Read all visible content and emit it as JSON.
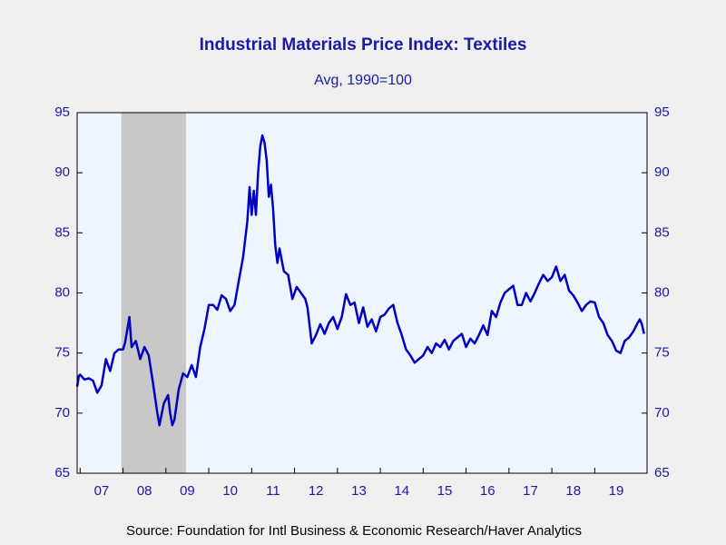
{
  "chart_data": {
    "type": "line",
    "title": "Industrial Materials Price Index: Textiles",
    "subtitle": "Avg, 1990=100",
    "source": "Source:  Foundation for Intl Business & Economic Research/Haver Analytics",
    "xlim": [
      2006.93,
      2020.22
    ],
    "xticks": [
      {
        "value": 2007.5,
        "label": "07"
      },
      {
        "value": 2008.5,
        "label": "08"
      },
      {
        "value": 2009.5,
        "label": "09"
      },
      {
        "value": 2010.5,
        "label": "10"
      },
      {
        "value": 2011.5,
        "label": "11"
      },
      {
        "value": 2012.5,
        "label": "12"
      },
      {
        "value": 2013.5,
        "label": "13"
      },
      {
        "value": 2014.5,
        "label": "14"
      },
      {
        "value": 2015.5,
        "label": "15"
      },
      {
        "value": 2016.5,
        "label": "16"
      },
      {
        "value": 2017.5,
        "label": "17"
      },
      {
        "value": 2018.5,
        "label": "18"
      },
      {
        "value": 2019.5,
        "label": "19"
      }
    ],
    "ylim": [
      65,
      95
    ],
    "yticks": [
      65,
      70,
      75,
      80,
      85,
      90,
      95
    ],
    "y2lim": [
      65,
      95
    ],
    "y2ticks": [
      65,
      70,
      75,
      80,
      85,
      90,
      95
    ],
    "recession": [
      2007.96,
      2009.47
    ],
    "recession_color": "#c8c8c8",
    "plot_background": "#eef5ff",
    "series": [
      {
        "color": "#0000c0",
        "x": [
          2006.93,
          2006.97,
          2007.0,
          2007.1,
          2007.2,
          2007.3,
          2007.4,
          2007.5,
          2007.6,
          2007.7,
          2007.8,
          2007.9,
          2008.0,
          2008.05,
          2008.15,
          2008.2,
          2008.3,
          2008.4,
          2008.5,
          2008.6,
          2008.7,
          2008.8,
          2008.85,
          2008.95,
          2009.05,
          2009.1,
          2009.15,
          2009.2,
          2009.3,
          2009.4,
          2009.5,
          2009.6,
          2009.7,
          2009.8,
          2009.9,
          2010.0,
          2010.1,
          2010.2,
          2010.3,
          2010.4,
          2010.5,
          2010.6,
          2010.7,
          2010.8,
          2010.9,
          2010.95,
          2011.0,
          2011.05,
          2011.1,
          2011.15,
          2011.2,
          2011.25,
          2011.3,
          2011.35,
          2011.4,
          2011.45,
          2011.5,
          2011.55,
          2011.6,
          2011.65,
          2011.75,
          2011.85,
          2011.95,
          2012.05,
          2012.15,
          2012.25,
          2012.3,
          2012.4,
          2012.5,
          2012.6,
          2012.7,
          2012.8,
          2012.9,
          2013.0,
          2013.1,
          2013.2,
          2013.3,
          2013.4,
          2013.5,
          2013.6,
          2013.7,
          2013.8,
          2013.9,
          2014.0,
          2014.1,
          2014.2,
          2014.3,
          2014.4,
          2014.5,
          2014.6,
          2014.7,
          2014.8,
          2014.9,
          2015.0,
          2015.1,
          2015.2,
          2015.3,
          2015.4,
          2015.5,
          2015.6,
          2015.7,
          2015.8,
          2015.9,
          2016.0,
          2016.1,
          2016.2,
          2016.3,
          2016.4,
          2016.5,
          2016.6,
          2016.7,
          2016.8,
          2016.9,
          2017.0,
          2017.1,
          2017.2,
          2017.3,
          2017.4,
          2017.5,
          2017.6,
          2017.7,
          2017.8,
          2017.9,
          2018.0,
          2018.1,
          2018.2,
          2018.3,
          2018.4,
          2018.5,
          2018.6,
          2018.7,
          2018.8,
          2018.9,
          2019.0,
          2019.1,
          2019.2,
          2019.3,
          2019.4,
          2019.5,
          2019.6,
          2019.7,
          2019.8,
          2019.9,
          2020.0,
          2020.05,
          2020.1,
          2020.15
        ],
        "values": [
          72.2,
          73.1,
          73.2,
          72.8,
          72.9,
          72.7,
          71.7,
          72.3,
          74.5,
          73.5,
          75.0,
          75.3,
          75.3,
          75.9,
          78.0,
          75.5,
          76.0,
          74.5,
          75.5,
          74.8,
          72.5,
          70.0,
          69.0,
          70.8,
          71.5,
          70.0,
          69.0,
          69.5,
          72.0,
          73.3,
          73.0,
          74.0,
          73.0,
          75.5,
          77.0,
          79.0,
          79.0,
          78.6,
          79.8,
          79.5,
          78.5,
          79.0,
          81.0,
          83.0,
          86.0,
          88.8,
          86.5,
          88.5,
          86.5,
          90.0,
          92.2,
          93.1,
          92.5,
          91.0,
          88.0,
          89.0,
          87.0,
          84.0,
          82.5,
          83.7,
          81.8,
          81.5,
          79.5,
          80.5,
          80.0,
          79.5,
          78.8,
          75.8,
          76.5,
          77.4,
          76.6,
          77.5,
          78.0,
          77.0,
          78.0,
          79.9,
          79.0,
          79.2,
          77.5,
          78.8,
          77.2,
          77.8,
          76.8,
          78.0,
          78.2,
          78.7,
          79.0,
          77.5,
          76.5,
          75.3,
          74.8,
          74.2,
          74.5,
          74.8,
          75.5,
          75.0,
          75.8,
          75.5,
          76.1,
          75.3,
          76.0,
          76.3,
          76.6,
          75.5,
          76.2,
          75.8,
          76.5,
          77.3,
          76.5,
          78.5,
          78.0,
          79.2,
          80.0,
          80.3,
          80.6,
          79.0,
          79.0,
          80.0,
          79.3,
          80.0,
          80.8,
          81.5,
          81.0,
          81.3,
          82.2,
          81.0,
          81.5,
          80.2,
          79.8,
          79.2,
          78.5,
          79.0,
          79.3,
          79.2,
          78.0,
          77.5,
          76.5,
          76.0,
          75.2,
          75.0,
          76.0,
          76.3,
          76.8,
          77.5,
          77.8,
          77.4,
          76.6
        ]
      }
    ]
  }
}
